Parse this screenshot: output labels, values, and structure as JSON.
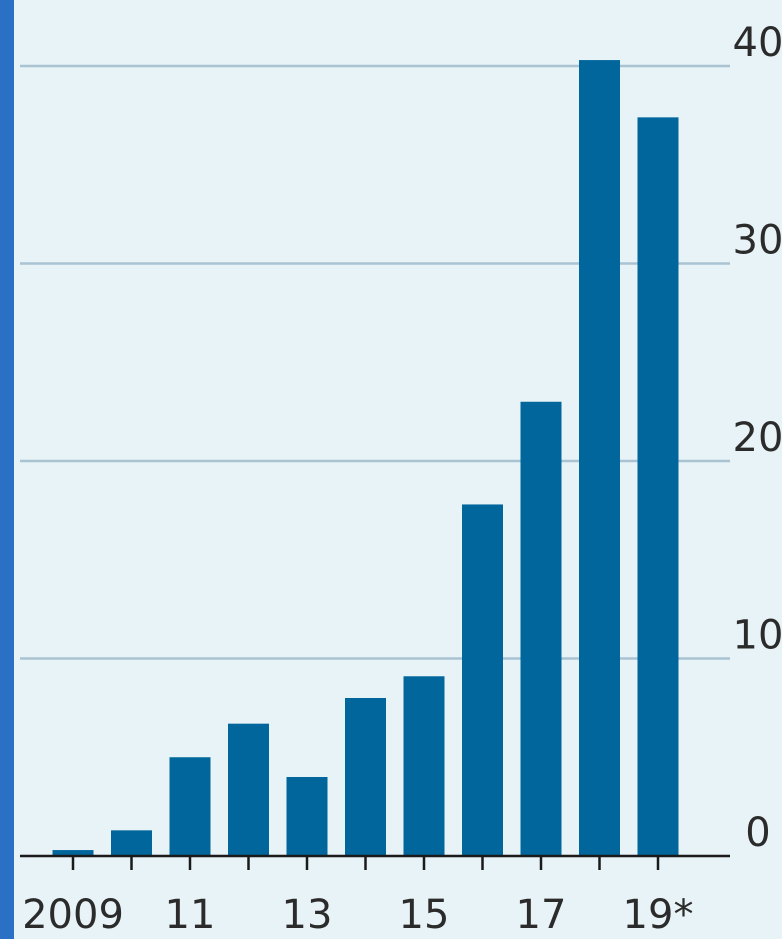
{
  "chart_data": {
    "type": "bar",
    "categories": [
      "2009",
      "2010",
      "2011",
      "2012",
      "2013",
      "2014",
      "2015",
      "2016",
      "2017",
      "2018",
      "2019*"
    ],
    "x_tick_labels": [
      "2009",
      "11",
      "13",
      "15",
      "17",
      "19*"
    ],
    "x_tick_label_categories": [
      "2009",
      "2011",
      "2013",
      "2015",
      "2017",
      "2019*"
    ],
    "values": [
      0.3,
      1.3,
      5.0,
      6.7,
      4.0,
      8.0,
      9.1,
      17.8,
      23.0,
      40.3,
      37.4
    ],
    "y_ticks": [
      0,
      10,
      20,
      30,
      40
    ],
    "y_tick_labels": [
      "0",
      "10",
      "20",
      "30",
      "40"
    ],
    "ylim": [
      0,
      40.5
    ],
    "yaxis_side": "right",
    "grid": true,
    "title": "",
    "xlabel": "",
    "ylabel": ""
  },
  "colors": {
    "background": "#e8f3f7",
    "bar": "#00669c",
    "gridline": "#a9c3d2",
    "axis": "#1a1a1a",
    "stripe": "#2a70c4"
  }
}
